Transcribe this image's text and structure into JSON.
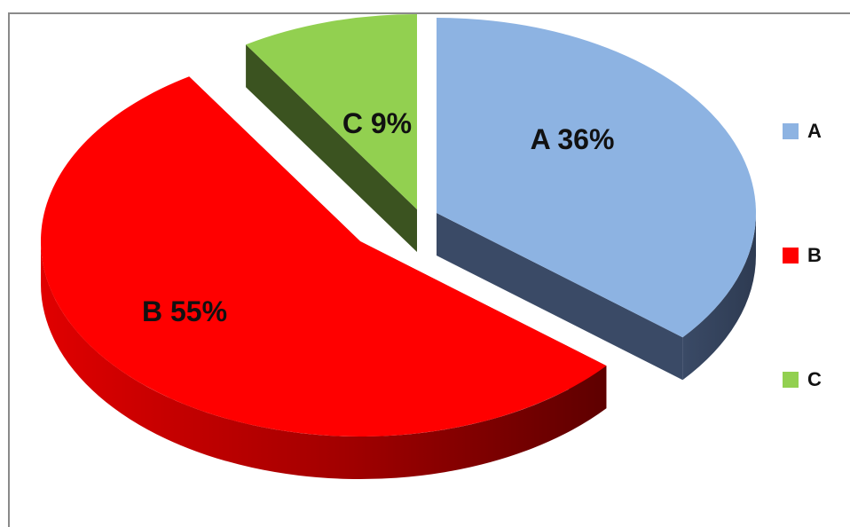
{
  "chart_data": {
    "type": "pie",
    "title": "",
    "style": "3d-exploded",
    "slices": [
      {
        "label": "A",
        "value": 36,
        "display": "A 36%",
        "color": "#8DB3E2",
        "side_color": "#3A4A66"
      },
      {
        "label": "B",
        "value": 55,
        "display": "B 55%",
        "color": "#FF0000",
        "side_color": "#9A0000"
      },
      {
        "label": "C",
        "value": 9,
        "display": "C 9%",
        "color": "#92D050",
        "side_color": "#3B5320"
      }
    ],
    "legend_position": "right"
  }
}
